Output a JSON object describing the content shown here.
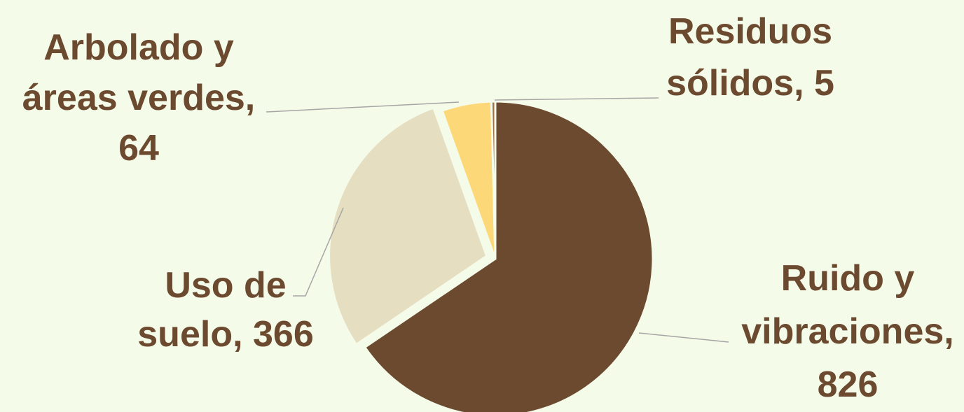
{
  "chart_data": {
    "type": "pie",
    "categories": [
      "Ruido y vibraciones",
      "Uso de suelo",
      "Arbolado y áreas verdes",
      "Residuos sólidos"
    ],
    "values": [
      826,
      366,
      64,
      5
    ],
    "labels": [
      [
        "Ruido y",
        "vibraciones,",
        "826"
      ],
      [
        "Uso de",
        "suelo, 366"
      ],
      [
        "Arbolado y",
        "áreas verdes,",
        "64"
      ],
      [
        "Residuos",
        "sólidos, 5"
      ]
    ],
    "colors": [
      "#6b4a30",
      "#e6dec0",
      "#fdd878",
      "#a0704a"
    ],
    "label_color": "#6b4a30",
    "leader_line_color": "#a6a6a6",
    "background_color": "#f5fbe9",
    "title": "",
    "start_angle": "12 o'clock",
    "direction": "clockwise",
    "exploded_slice": "Uso de suelo"
  }
}
